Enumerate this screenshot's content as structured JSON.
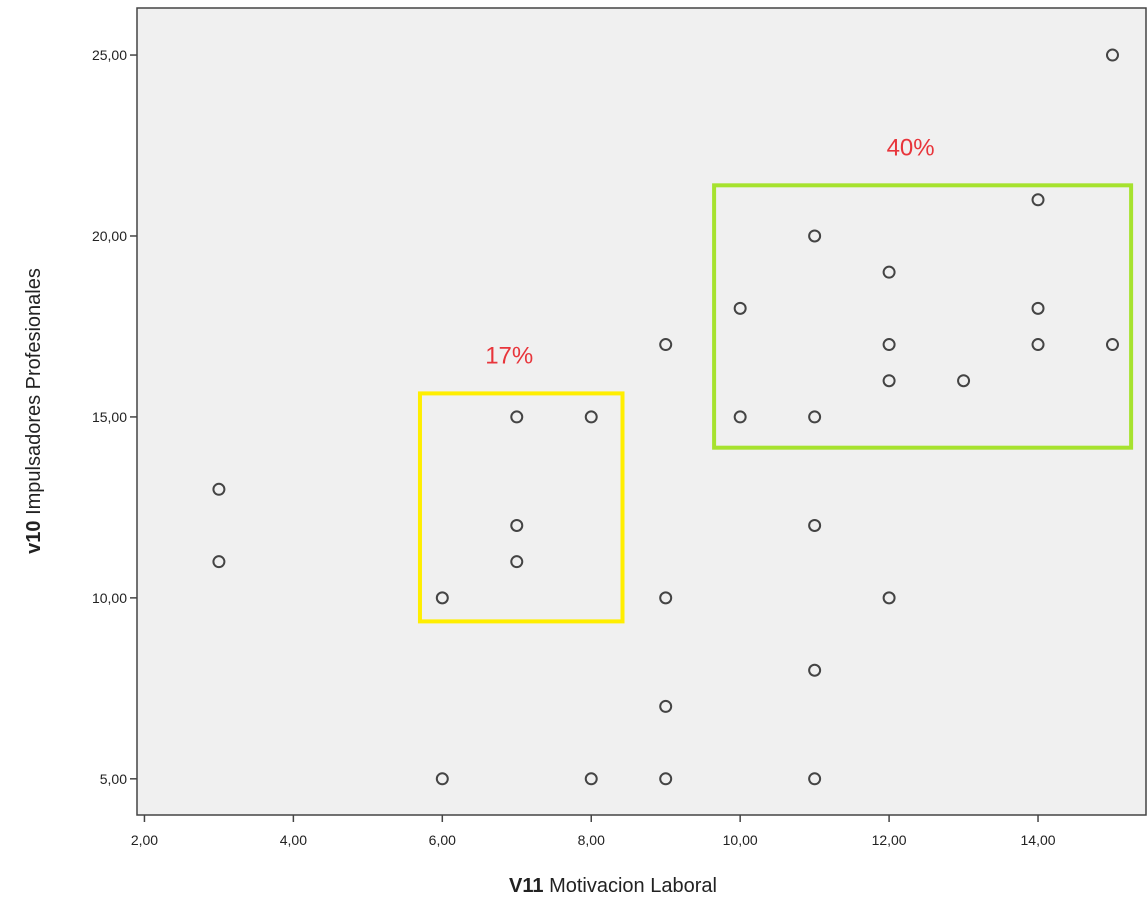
{
  "chart_data": {
    "type": "scatter",
    "title": "",
    "xlabel": {
      "bold": "V11",
      "rest": " Motivacion Laboral"
    },
    "ylabel": {
      "bold": "v10",
      "rest": " Impulsadores Profesionales"
    },
    "xlim": [
      1.9,
      15.45
    ],
    "ylim": [
      4.0,
      26.3
    ],
    "x_ticks": [
      {
        "value": 2,
        "label": "2,00"
      },
      {
        "value": 4,
        "label": "4,00"
      },
      {
        "value": 6,
        "label": "6,00"
      },
      {
        "value": 8,
        "label": "8,00"
      },
      {
        "value": 10,
        "label": "10,00"
      },
      {
        "value": 12,
        "label": "12,00"
      },
      {
        "value": 14,
        "label": "14,00"
      }
    ],
    "y_ticks": [
      {
        "value": 5,
        "label": "5,00"
      },
      {
        "value": 10,
        "label": "10,00"
      },
      {
        "value": 15,
        "label": "15,00"
      },
      {
        "value": 20,
        "label": "20,00"
      },
      {
        "value": 25,
        "label": "25,00"
      }
    ],
    "grid": false,
    "points": [
      {
        "x": 15,
        "y": 25
      },
      {
        "x": 14,
        "y": 21
      },
      {
        "x": 11,
        "y": 20
      },
      {
        "x": 12,
        "y": 19
      },
      {
        "x": 10,
        "y": 18
      },
      {
        "x": 14,
        "y": 18
      },
      {
        "x": 9,
        "y": 17
      },
      {
        "x": 12,
        "y": 17
      },
      {
        "x": 14,
        "y": 17
      },
      {
        "x": 15,
        "y": 17
      },
      {
        "x": 12,
        "y": 16
      },
      {
        "x": 13,
        "y": 16
      },
      {
        "x": 7,
        "y": 15
      },
      {
        "x": 8,
        "y": 15
      },
      {
        "x": 10,
        "y": 15
      },
      {
        "x": 11,
        "y": 15
      },
      {
        "x": 3,
        "y": 13
      },
      {
        "x": 7,
        "y": 12
      },
      {
        "x": 11,
        "y": 12
      },
      {
        "x": 3,
        "y": 11
      },
      {
        "x": 7,
        "y": 11
      },
      {
        "x": 6,
        "y": 10
      },
      {
        "x": 9,
        "y": 10
      },
      {
        "x": 12,
        "y": 10
      },
      {
        "x": 11,
        "y": 8
      },
      {
        "x": 9,
        "y": 7
      },
      {
        "x": 6,
        "y": 5
      },
      {
        "x": 8,
        "y": 5
      },
      {
        "x": 9,
        "y": 5
      },
      {
        "x": 11,
        "y": 5
      }
    ],
    "regions": [
      {
        "name": "yellow-region",
        "label": "17%",
        "color": "#ffee00",
        "label_color": "#e8353b",
        "x0": 5.7,
        "x1": 8.42,
        "y0": 9.35,
        "y1": 15.65
      },
      {
        "name": "green-region",
        "label": "40%",
        "color": "#a6e22e",
        "label_color": "#e8353b",
        "x0": 9.65,
        "x1": 15.25,
        "y0": 14.15,
        "y1": 21.4
      }
    ],
    "colors": {
      "plot_background": "#f0f0f0",
      "marker_stroke": "#444444",
      "axis": "#444444"
    }
  }
}
